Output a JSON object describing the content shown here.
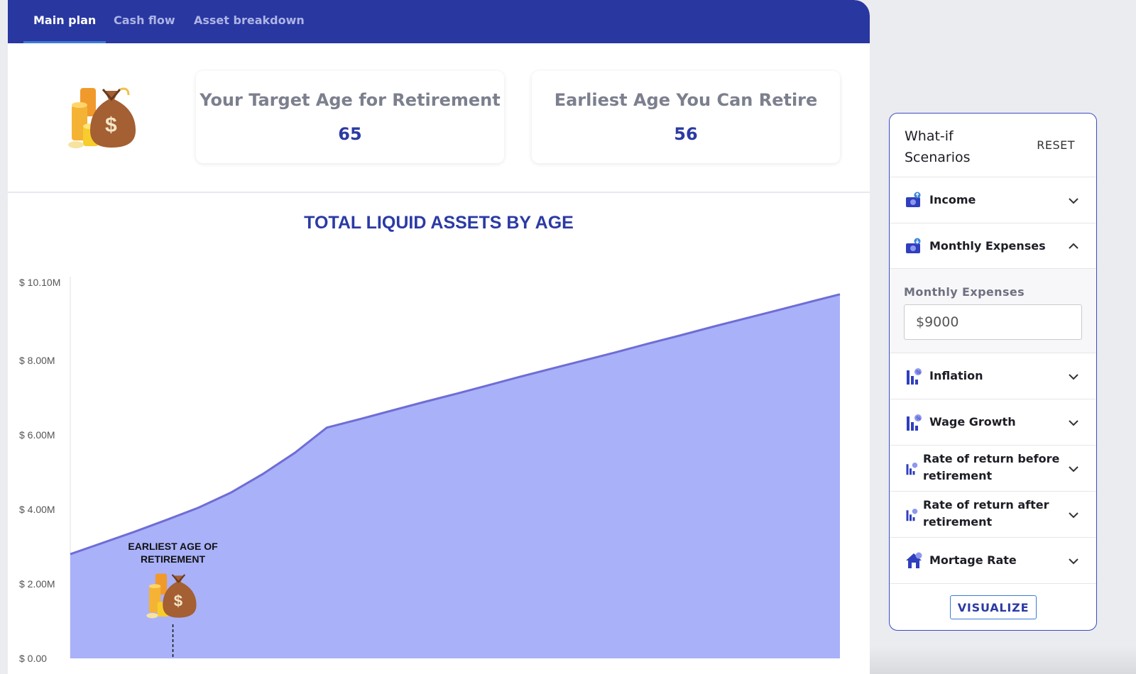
{
  "tabs": [
    {
      "label": "Main plan",
      "active": true
    },
    {
      "label": "Cash flow",
      "active": false
    },
    {
      "label": "Asset breakdown",
      "active": false
    }
  ],
  "summary": {
    "target_label": "Your Target Age for Retirement",
    "target_value": "65",
    "earliest_label": "Earliest Age You Can Retire",
    "earliest_value": "56"
  },
  "chart_data": {
    "type": "area",
    "title": "TOTAL LIQUID ASSETS BY AGE",
    "y_tick_labels": [
      "$ 10.10M",
      "$ 8.00M",
      "$ 6.00M",
      "$ 4.00M",
      "$ 2.00M",
      "$ 0.00"
    ],
    "y_tick_values": [
      10.1,
      8.0,
      6.0,
      4.0,
      2.0,
      0.0
    ],
    "ylim": [
      0,
      10.1
    ],
    "y_unit": "M",
    "series": [
      {
        "values": [
          2.8,
          3.1,
          3.4,
          3.72,
          4.05,
          4.45,
          4.95,
          5.52,
          6.2,
          6.42,
          6.65,
          6.88,
          7.1,
          7.33,
          7.56,
          7.78,
          8.0,
          8.22,
          8.45,
          8.67,
          8.9,
          9.12,
          9.34,
          9.56,
          9.78
        ]
      }
    ],
    "annotation": {
      "text_line1": "EARLIEST AGE OF",
      "text_line2": "RETIREMENT",
      "index": 3.2
    },
    "fill_color": "#a9b1f9",
    "line_color": "#6f6dd4"
  },
  "panel": {
    "title": "What-if Scenarios",
    "reset_label": "RESET",
    "items": [
      {
        "label": "Income",
        "icon": "money-icon",
        "expanded": false
      },
      {
        "label": "Monthly Expenses",
        "icon": "money-icon",
        "expanded": true
      },
      {
        "label": "Inflation",
        "icon": "bar-percent-icon",
        "expanded": false
      },
      {
        "label": "Wage Growth",
        "icon": "bar-percent-icon",
        "expanded": false
      },
      {
        "label": "Rate of return before retirement",
        "icon": "bar-percent-icon",
        "expanded": false
      },
      {
        "label": "Rate of return after retirement",
        "icon": "bar-percent-icon",
        "expanded": false
      },
      {
        "label": "Mortage Rate",
        "icon": "house-icon",
        "expanded": false
      }
    ],
    "expense_field": {
      "label": "Monthly Expenses",
      "value": "$9000"
    },
    "visualize_label": "VISUALIZE"
  },
  "colors": {
    "nav": "#2937a1",
    "accent": "#2b3aa4",
    "area": "#a9b1f9"
  }
}
